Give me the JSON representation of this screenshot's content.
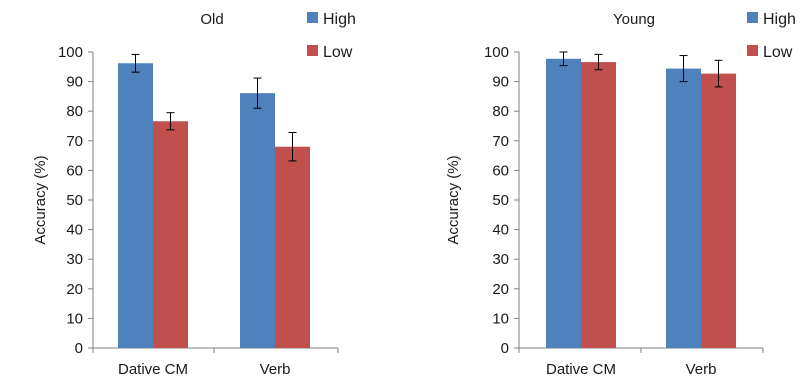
{
  "chart_data": [
    {
      "type": "bar",
      "title": "Old",
      "ylabel": "Accuracy (%)",
      "xlabel": "",
      "ylim": [
        0,
        100
      ],
      "yticks": [
        0,
        10,
        20,
        30,
        40,
        50,
        60,
        70,
        80,
        90,
        100
      ],
      "categories": [
        "Dative CM",
        "Verb"
      ],
      "series": [
        {
          "name": "High",
          "color": "#4f81bd",
          "values": [
            96.2,
            86.1
          ],
          "error": [
            3.0,
            5.1
          ]
        },
        {
          "name": "Low",
          "color": "#c0504d",
          "values": [
            76.6,
            68.0
          ],
          "error": [
            2.9,
            4.8
          ]
        }
      ],
      "legend_position": "top-right",
      "grid": false
    },
    {
      "type": "bar",
      "title": "Young",
      "ylabel": "Accuracy (%)",
      "xlabel": "",
      "ylim": [
        0,
        100
      ],
      "yticks": [
        0,
        10,
        20,
        30,
        40,
        50,
        60,
        70,
        80,
        90,
        100
      ],
      "categories": [
        "Dative CM",
        "Verb"
      ],
      "series": [
        {
          "name": "High",
          "color": "#4f81bd",
          "values": [
            97.7,
            94.4
          ],
          "error": [
            2.3,
            4.4
          ]
        },
        {
          "name": "Low",
          "color": "#c0504d",
          "values": [
            96.6,
            92.7
          ],
          "error": [
            2.6,
            4.5
          ]
        }
      ],
      "legend_position": "top-right",
      "grid": false
    }
  ]
}
